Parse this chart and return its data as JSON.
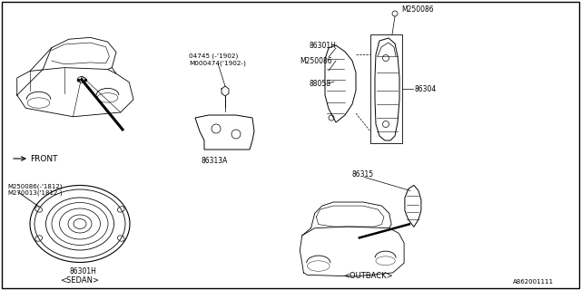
{
  "part_number_bottom_right": "A862001111",
  "background_color": "#ffffff",
  "line_color": "#000000",
  "text_color": "#000000",
  "labels": {
    "sedan": "<SEDAN>",
    "outback": "<OUTBACK>",
    "front": "FRONT",
    "part_86301H_top": "86301H",
    "part_M250086_top": "M250086",
    "part_86301H_bot": "86301H",
    "part_M250086_bot1": "M250086（-‘1812）",
    "part_M250086_label": "M250086(-'1812)",
    "part_M270013_label": "M270013('1812-)",
    "part_04745": "04745 (-'1902)",
    "part_M000474": "M000474('1902-)",
    "part_86313A": "86313A",
    "part_86304": "86304",
    "part_88058": "88058",
    "part_86315": "86315",
    "part_M250086_mid": "M250086"
  }
}
